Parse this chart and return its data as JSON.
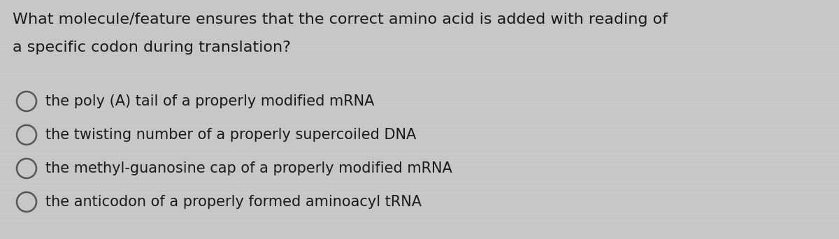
{
  "background_color": "#c8c8c8",
  "text_color": "#1a1a1a",
  "circle_color": "#555555",
  "question_line1": "What molecule/feature ensures that the correct amino acid is added with reading of",
  "question_line2": "a specific codon during translation?",
  "options": [
    "the poly (A) tail of a properly modified mRNA",
    "the twisting number of a properly supercoiled DNA",
    "the methyl-guanosine cap of a properly modified mRNA",
    "the anticodon of a properly formed aminoacyl tRNA"
  ],
  "question_fontsize": 16,
  "option_fontsize": 15,
  "fig_width": 12.0,
  "fig_height": 3.42,
  "dpi": 100
}
